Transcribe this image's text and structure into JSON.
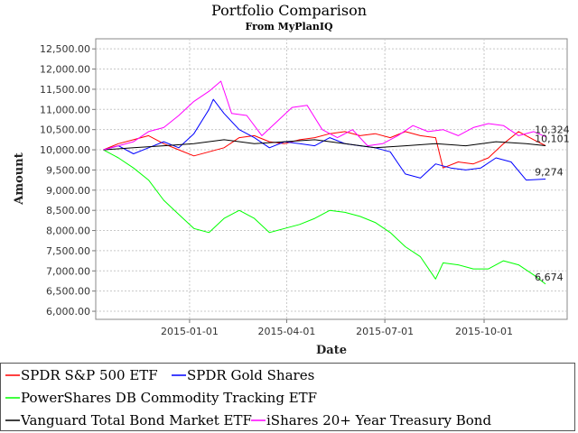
{
  "chart_data": {
    "type": "line",
    "title": "Portfolio Comparison",
    "subtitle": "From MyPlanIQ",
    "xlabel": "Date",
    "ylabel": "Amount",
    "ylim": [
      5800,
      12750
    ],
    "xlim": [
      "2014-10-06",
      "2015-12-17"
    ],
    "y_ticks": [
      6000,
      6500,
      7000,
      7500,
      8000,
      8500,
      9000,
      9500,
      10000,
      10500,
      11000,
      11500,
      12000,
      12500
    ],
    "y_tick_labels": [
      "6,000.00",
      "6,500.00",
      "7,000.00",
      "7,500.00",
      "8,000.00",
      "8,500.00",
      "9,000.00",
      "9,500.00",
      "10,000.00",
      "10,500.00",
      "11,000.00",
      "11,500.00",
      "12,000.00",
      "12,500.00"
    ],
    "x_ticks": [
      "2015-01-01",
      "2015-04-01",
      "2015-07-01",
      "2015-10-01"
    ],
    "grid": true,
    "legend_position": "bottom",
    "series": [
      {
        "name": "SPDR S&P 500 ETF",
        "color": "#ff0000",
        "end_label": "",
        "points": [
          [
            "2014-10-13",
            10000
          ],
          [
            "2014-10-27",
            10150
          ],
          [
            "2014-11-10",
            10250
          ],
          [
            "2014-11-24",
            10350
          ],
          [
            "2014-12-08",
            10150
          ],
          [
            "2014-12-22",
            10000
          ],
          [
            "2015-01-05",
            9850
          ],
          [
            "2015-01-19",
            9950
          ],
          [
            "2015-02-02",
            10050
          ],
          [
            "2015-02-16",
            10300
          ],
          [
            "2015-03-02",
            10350
          ],
          [
            "2015-03-16",
            10200
          ],
          [
            "2015-03-30",
            10150
          ],
          [
            "2015-04-13",
            10250
          ],
          [
            "2015-04-27",
            10300
          ],
          [
            "2015-05-11",
            10400
          ],
          [
            "2015-05-25",
            10450
          ],
          [
            "2015-06-08",
            10350
          ],
          [
            "2015-06-22",
            10400
          ],
          [
            "2015-07-06",
            10300
          ],
          [
            "2015-07-20",
            10450
          ],
          [
            "2015-08-03",
            10350
          ],
          [
            "2015-08-17",
            10300
          ],
          [
            "2015-08-24",
            9550
          ],
          [
            "2015-09-07",
            9700
          ],
          [
            "2015-09-21",
            9650
          ],
          [
            "2015-10-05",
            9800
          ],
          [
            "2015-10-19",
            10150
          ],
          [
            "2015-11-02",
            10450
          ],
          [
            "2015-11-16",
            10250
          ],
          [
            "2015-11-27",
            10101
          ]
        ]
      },
      {
        "name": "SPDR Gold Shares",
        "color": "#0000ff",
        "end_label": "9,274",
        "points": [
          [
            "2014-10-13",
            10000
          ],
          [
            "2014-10-27",
            10100
          ],
          [
            "2014-11-10",
            9900
          ],
          [
            "2014-11-24",
            10050
          ],
          [
            "2014-12-08",
            10200
          ],
          [
            "2014-12-22",
            10050
          ],
          [
            "2015-01-05",
            10400
          ],
          [
            "2015-01-19",
            11000
          ],
          [
            "2015-01-23",
            11250
          ],
          [
            "2015-02-02",
            10900
          ],
          [
            "2015-02-16",
            10500
          ],
          [
            "2015-03-02",
            10300
          ],
          [
            "2015-03-16",
            10050
          ],
          [
            "2015-03-30",
            10200
          ],
          [
            "2015-04-13",
            10150
          ],
          [
            "2015-04-27",
            10100
          ],
          [
            "2015-05-11",
            10300
          ],
          [
            "2015-05-25",
            10150
          ],
          [
            "2015-06-08",
            10100
          ],
          [
            "2015-06-22",
            10050
          ],
          [
            "2015-07-06",
            9950
          ],
          [
            "2015-07-20",
            9400
          ],
          [
            "2015-08-03",
            9300
          ],
          [
            "2015-08-17",
            9650
          ],
          [
            "2015-08-31",
            9550
          ],
          [
            "2015-09-14",
            9500
          ],
          [
            "2015-09-28",
            9550
          ],
          [
            "2015-10-12",
            9800
          ],
          [
            "2015-10-26",
            9700
          ],
          [
            "2015-11-09",
            9250
          ],
          [
            "2015-11-27",
            9274
          ]
        ]
      },
      {
        "name": "PowerShares DB Commodity Tracking ETF",
        "color": "#00ff00",
        "end_label": "6,674",
        "points": [
          [
            "2014-10-13",
            10000
          ],
          [
            "2014-10-27",
            9800
          ],
          [
            "2014-11-10",
            9550
          ],
          [
            "2014-11-24",
            9250
          ],
          [
            "2014-12-08",
            8750
          ],
          [
            "2014-12-22",
            8400
          ],
          [
            "2015-01-05",
            8050
          ],
          [
            "2015-01-19",
            7950
          ],
          [
            "2015-02-02",
            8300
          ],
          [
            "2015-02-16",
            8500
          ],
          [
            "2015-03-02",
            8300
          ],
          [
            "2015-03-16",
            7950
          ],
          [
            "2015-03-30",
            8050
          ],
          [
            "2015-04-13",
            8150
          ],
          [
            "2015-04-27",
            8300
          ],
          [
            "2015-05-11",
            8500
          ],
          [
            "2015-05-25",
            8450
          ],
          [
            "2015-06-08",
            8350
          ],
          [
            "2015-06-22",
            8200
          ],
          [
            "2015-07-06",
            7950
          ],
          [
            "2015-07-20",
            7600
          ],
          [
            "2015-08-03",
            7350
          ],
          [
            "2015-08-17",
            6800
          ],
          [
            "2015-08-24",
            7200
          ],
          [
            "2015-09-07",
            7150
          ],
          [
            "2015-09-21",
            7050
          ],
          [
            "2015-10-05",
            7050
          ],
          [
            "2015-10-19",
            7250
          ],
          [
            "2015-11-02",
            7150
          ],
          [
            "2015-11-16",
            6900
          ],
          [
            "2015-11-27",
            6674
          ]
        ]
      },
      {
        "name": "Vanguard Total Bond Market ETF",
        "color": "#000000",
        "end_label": "10,101",
        "points": [
          [
            "2014-10-13",
            10000
          ],
          [
            "2014-11-10",
            10050
          ],
          [
            "2014-12-08",
            10100
          ],
          [
            "2015-01-05",
            10150
          ],
          [
            "2015-02-02",
            10250
          ],
          [
            "2015-03-02",
            10150
          ],
          [
            "2015-03-30",
            10200
          ],
          [
            "2015-04-27",
            10250
          ],
          [
            "2015-05-25",
            10150
          ],
          [
            "2015-06-22",
            10050
          ],
          [
            "2015-07-20",
            10100
          ],
          [
            "2015-08-17",
            10150
          ],
          [
            "2015-09-14",
            10100
          ],
          [
            "2015-10-12",
            10200
          ],
          [
            "2015-11-09",
            10150
          ],
          [
            "2015-11-27",
            10101
          ]
        ]
      },
      {
        "name": "iShares 20+ Year Treasury Bond",
        "color": "#ff00ff",
        "end_label": "10,324",
        "points": [
          [
            "2014-10-13",
            10000
          ],
          [
            "2014-10-27",
            10100
          ],
          [
            "2014-11-10",
            10200
          ],
          [
            "2014-11-24",
            10450
          ],
          [
            "2014-12-08",
            10550
          ],
          [
            "2014-12-22",
            10850
          ],
          [
            "2015-01-05",
            11200
          ],
          [
            "2015-01-19",
            11450
          ],
          [
            "2015-01-30",
            11700
          ],
          [
            "2015-02-09",
            10900
          ],
          [
            "2015-02-23",
            10850
          ],
          [
            "2015-03-09",
            10350
          ],
          [
            "2015-03-23",
            10700
          ],
          [
            "2015-04-06",
            11050
          ],
          [
            "2015-04-20",
            11100
          ],
          [
            "2015-05-04",
            10500
          ],
          [
            "2015-05-18",
            10300
          ],
          [
            "2015-06-01",
            10500
          ],
          [
            "2015-06-15",
            10100
          ],
          [
            "2015-06-29",
            10150
          ],
          [
            "2015-07-13",
            10350
          ],
          [
            "2015-07-27",
            10600
          ],
          [
            "2015-08-10",
            10450
          ],
          [
            "2015-08-24",
            10500
          ],
          [
            "2015-09-07",
            10350
          ],
          [
            "2015-09-21",
            10550
          ],
          [
            "2015-10-05",
            10650
          ],
          [
            "2015-10-19",
            10600
          ],
          [
            "2015-11-02",
            10350
          ],
          [
            "2015-11-16",
            10450
          ],
          [
            "2015-11-27",
            10324
          ]
        ]
      }
    ],
    "end_labels_printed": [
      "10,324",
      "10,101",
      "9,274",
      "6,674"
    ]
  }
}
